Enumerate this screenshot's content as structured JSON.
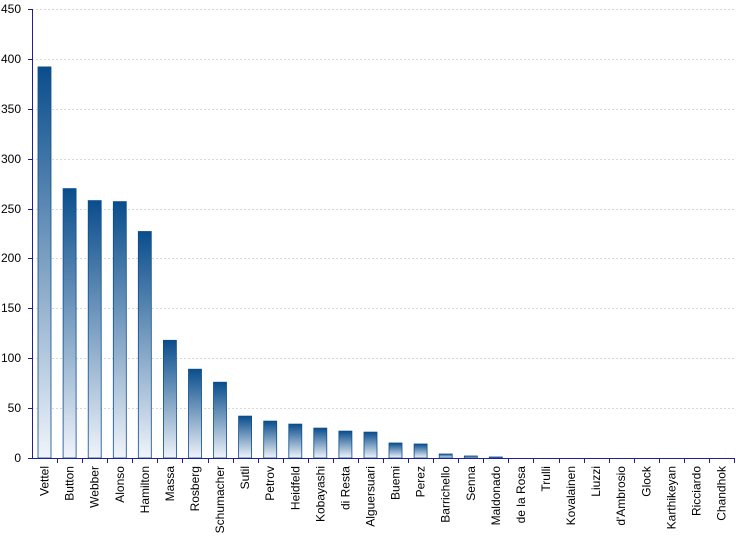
{
  "chart_data": {
    "type": "bar",
    "title": "",
    "xlabel": "",
    "ylabel": "",
    "ylim": [
      0,
      450
    ],
    "yticks": [
      0,
      50,
      100,
      150,
      200,
      250,
      300,
      350,
      400,
      450
    ],
    "grid": true,
    "legend": "none",
    "categories": [
      "Vettel",
      "Button",
      "Webber",
      "Alonso",
      "Hamilton",
      "Massa",
      "Rosberg",
      "Schumacher",
      "Sutil",
      "Petrov",
      "Heidfeld",
      "Kobayashi",
      "di Resta",
      "Alguersuari",
      "Buemi",
      "Perez",
      "Barrichello",
      "Senna",
      "Maldonado",
      "de la Rosa",
      "Trulli",
      "Kovalainen",
      "Liuzzi",
      "d'Ambrosio",
      "Glock",
      "Karthikeyan",
      "Ricciardo",
      "Chandhok"
    ],
    "values": [
      392,
      270,
      258,
      257,
      227,
      118,
      89,
      76,
      42,
      37,
      34,
      30,
      27,
      26,
      15,
      14,
      4,
      2,
      1,
      0,
      0,
      0,
      0,
      0,
      0,
      0,
      0,
      0
    ],
    "colors": {
      "bar_top": "#0a4d8c",
      "bar_bottom": "#f0f4fa",
      "bar_stroke": "#0a4d8c",
      "axis": "#1f1f9e",
      "grid": "#d9d9d9"
    }
  }
}
